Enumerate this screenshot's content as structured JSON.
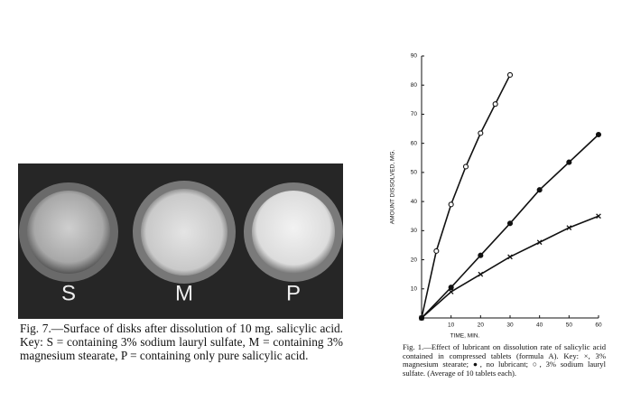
{
  "figure7": {
    "labels": [
      "S",
      "M",
      "P"
    ],
    "caption": "Fig. 7.—Surface of disks after dissolution of 10 mg. salicylic acid. Key: S = containing 3% sodium lauryl sulfate, M = containing 3% magnesium stearate, P = containing only pure salicylic acid."
  },
  "chart_data": {
    "type": "line",
    "xlabel": "TIME, MIN.",
    "ylabel": "AMOUNT DISSOLVED, MG.",
    "caption": "Fig. 1.—Effect of lubricant on dissolution rate of salicylic acid contained in compressed tablets (formula A). Key: ×, 3% magnesium stearate; ●, no lubricant; ○, 3% sodium lauryl sulfate. (Average of 10 tablets each).",
    "xlim": [
      0,
      60
    ],
    "ylim": [
      0,
      90
    ],
    "xticks": [
      10,
      20,
      30,
      40,
      50,
      60
    ],
    "yticks": [
      10,
      20,
      30,
      40,
      50,
      60,
      70,
      80,
      90
    ],
    "series": [
      {
        "marker": "circle-open",
        "color": "#111111",
        "x": [
          0,
          5,
          10,
          15,
          20,
          25,
          30
        ],
        "values": [
          0,
          23,
          39,
          52,
          63.5,
          73.5,
          83.5
        ]
      },
      {
        "marker": "circle-filled",
        "color": "#111111",
        "x": [
          0,
          10,
          20,
          30,
          40,
          50,
          60
        ],
        "values": [
          0,
          10.5,
          21.5,
          32.5,
          44,
          53.5,
          63
        ]
      },
      {
        "marker": "x",
        "color": "#111111",
        "x": [
          0,
          10,
          20,
          30,
          40,
          50,
          60
        ],
        "values": [
          0,
          9,
          15,
          21,
          26,
          31,
          35
        ]
      }
    ]
  }
}
